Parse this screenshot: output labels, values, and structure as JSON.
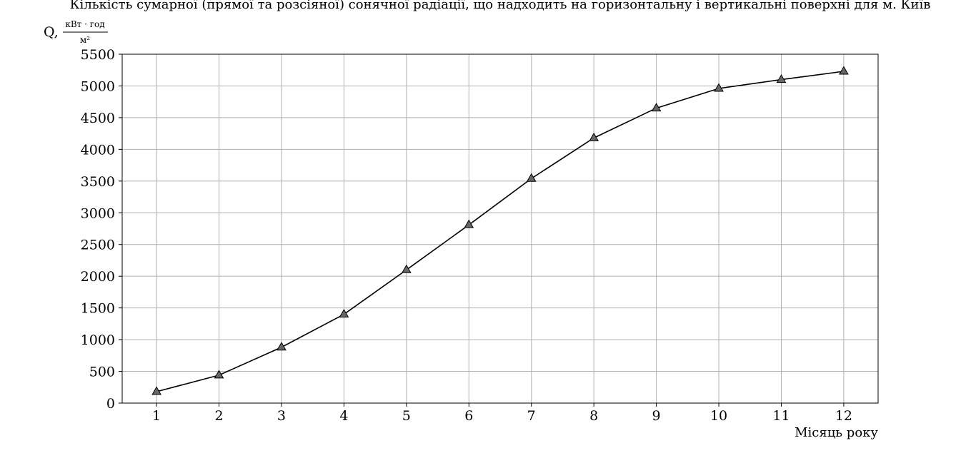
{
  "chart_data": {
    "type": "line",
    "title": "Кількість сумарної (прямої та розсіяної) сонячної радіації, що надходить на горизонтальну і вертикальні поверхні для м. Київ",
    "ylabel": {
      "symbol": "Q,",
      "unit_numerator": "кВт · год",
      "unit_denominator": "м²"
    },
    "xlabel": "Місяць року",
    "categories": [
      1,
      2,
      3,
      4,
      5,
      6,
      7,
      8,
      9,
      10,
      11,
      12
    ],
    "x_ticks": [
      "1",
      "2",
      "3",
      "4",
      "5",
      "6",
      "7",
      "8",
      "9",
      "10",
      "11",
      "12"
    ],
    "y_ticks": [
      0,
      500,
      1000,
      1500,
      2000,
      2500,
      3000,
      3500,
      4000,
      4500,
      5000,
      5500
    ],
    "xlim": [
      0.45,
      12.55
    ],
    "ylim": [
      0,
      5500
    ],
    "grid": true,
    "marker": "triangle",
    "series": [
      {
        "values": [
          180,
          440,
          880,
          1400,
          2100,
          2810,
          3540,
          4180,
          4650,
          4960,
          5100,
          5230
        ],
        "color": "#000000",
        "marker_color": "#666666"
      }
    ]
  }
}
